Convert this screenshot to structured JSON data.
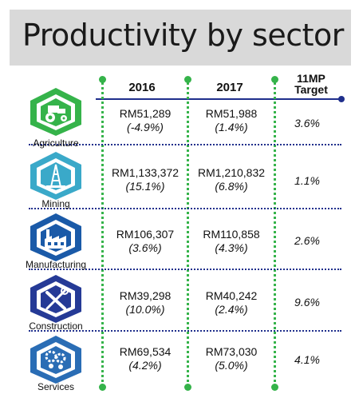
{
  "title": "Productivity by sector",
  "columns": {
    "y2016": "2016",
    "y2017": "2017",
    "target_line1": "11MP",
    "target_line2": "Target"
  },
  "colors": {
    "agriculture": "#35b34a",
    "mining": "#3aa9c9",
    "manufacturing": "#1a5aa8",
    "construction": "#253a96",
    "services": "#2a6db5"
  },
  "rows": [
    {
      "sector": "Agriculture",
      "icon": "tractor-icon",
      "v2016": "RM51,289",
      "p2016": "(-4.9%)",
      "v2017": "RM51,988",
      "p2017": "(1.4%)",
      "target": "3.6%"
    },
    {
      "sector": "Mining",
      "icon": "oil-rig-icon",
      "v2016": "RM1,133,372",
      "p2016": "(15.1%)",
      "v2017": "RM1,210,832",
      "p2017": "(6.8%)",
      "target": "1.1%"
    },
    {
      "sector": "Manufacturing",
      "icon": "factory-icon",
      "v2016": "RM106,307",
      "p2016": "(3.6%)",
      "v2017": "RM110,858",
      "p2017": "(4.3%)",
      "target": "2.6%"
    },
    {
      "sector": "Construction",
      "icon": "wrench-screwdriver-icon",
      "v2016": "RM39,298",
      "p2016": "(10.0%)",
      "v2017": "RM40,242",
      "p2017": "(2.4%)",
      "target": "9.6%"
    },
    {
      "sector": "Services",
      "icon": "gears-icon",
      "v2016": "RM69,534",
      "p2016": "(4.2%)",
      "v2017": "RM73,030",
      "p2017": "(5.0%)",
      "target": "4.1%"
    }
  ]
}
